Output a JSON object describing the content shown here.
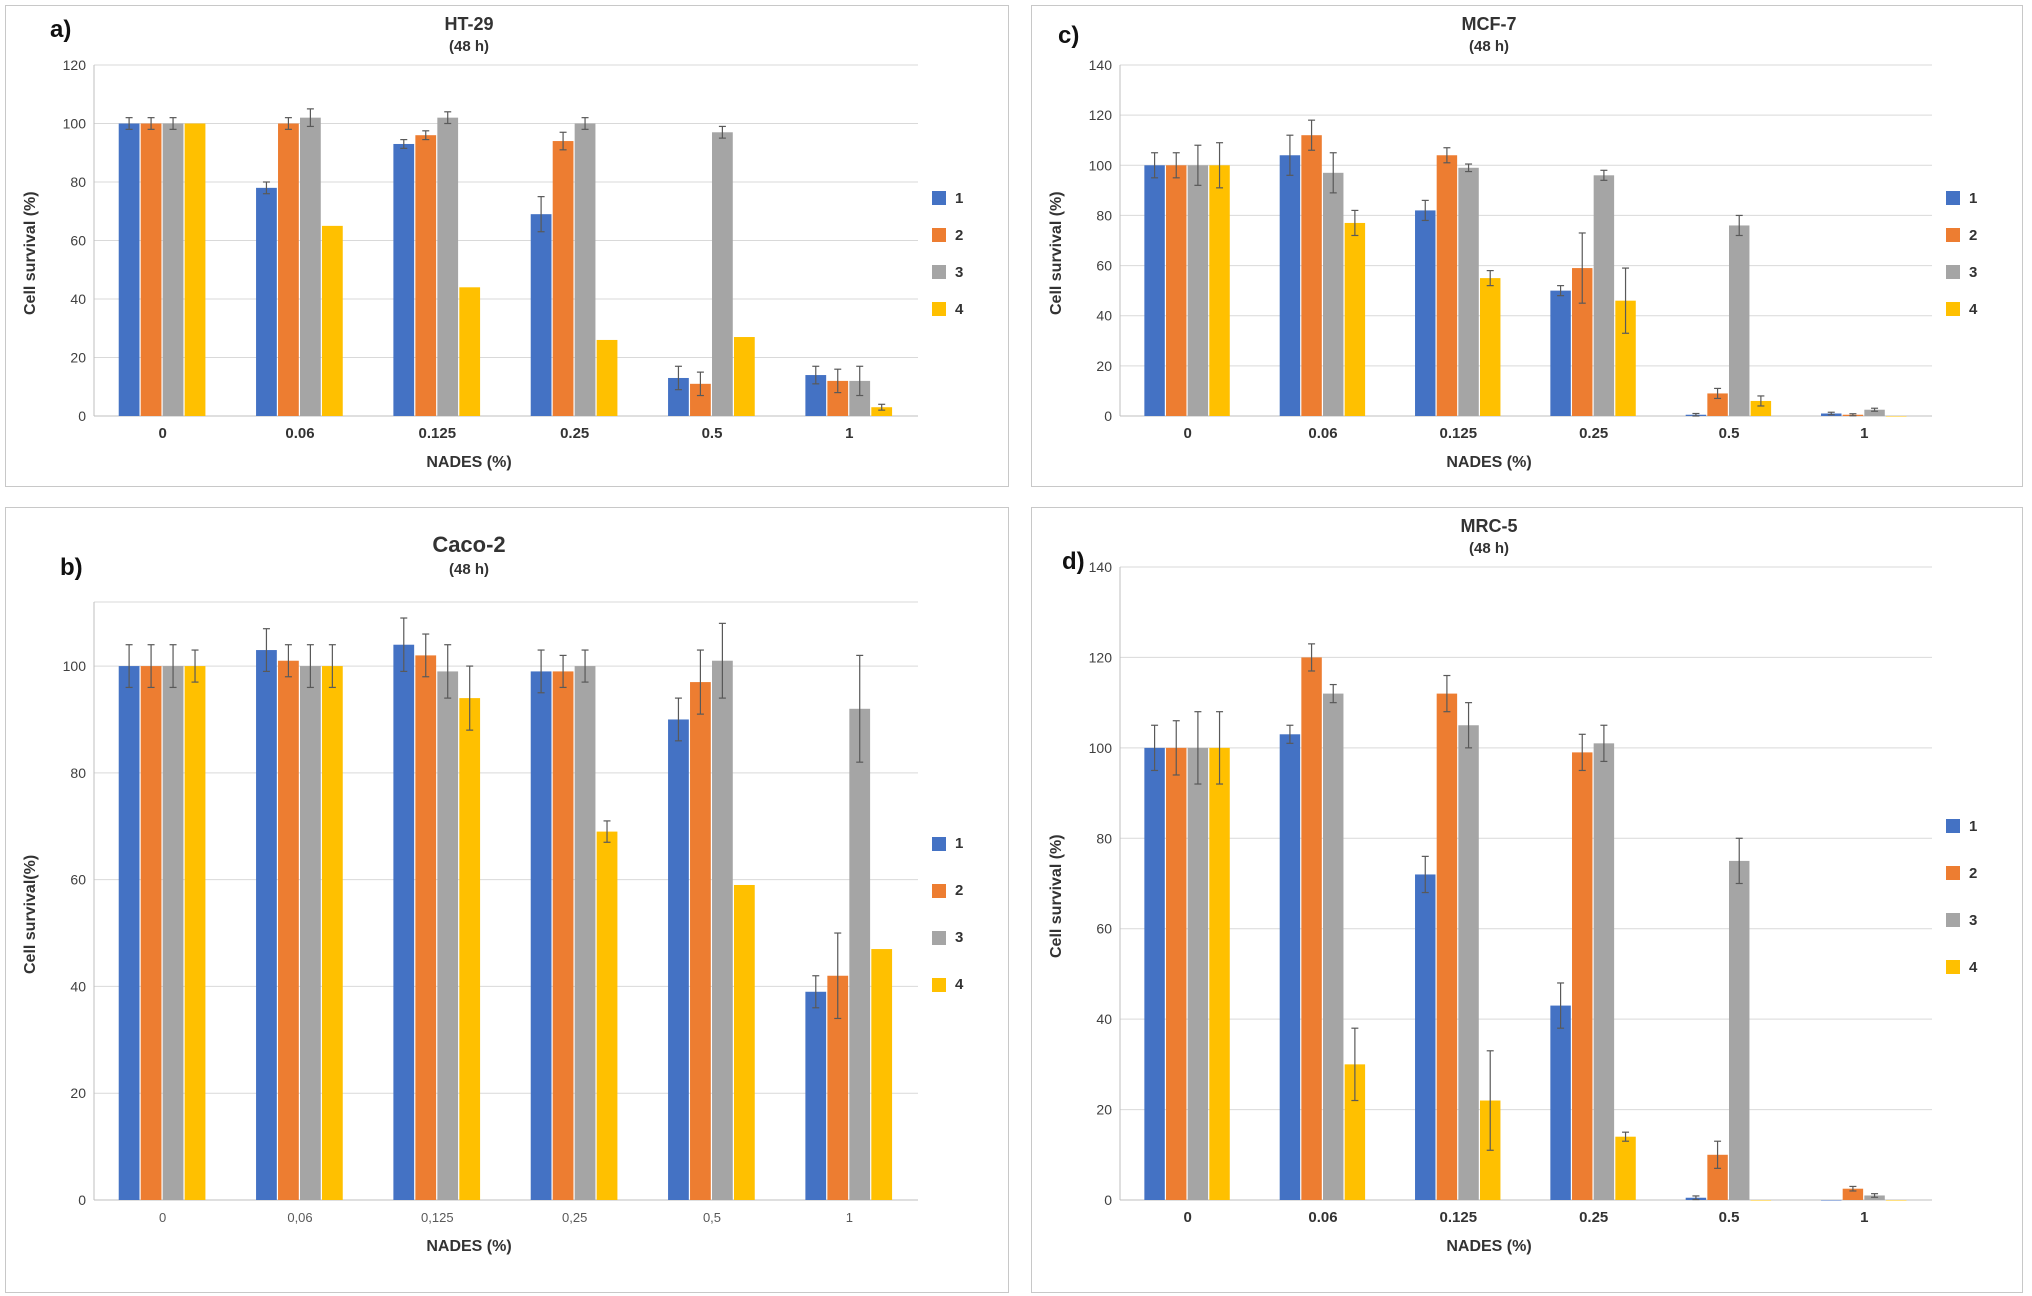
{
  "chart_data": [
    {
      "type": "bar",
      "panel_label": "a)",
      "title": "HT-29",
      "subtitle": "(48 h)",
      "xlabel": "NADES (%)",
      "ylabel": "Cell survival (%)",
      "categories": [
        "0",
        "0.06",
        "0.125",
        "0.25",
        "0.5",
        "1"
      ],
      "ylim": [
        0,
        120
      ],
      "ytick_step": 20,
      "grid": true,
      "legend_position": "right",
      "series": [
        {
          "name": "1",
          "color": "#4472C4",
          "values": [
            100,
            78,
            93,
            69,
            13,
            14
          ],
          "errors": [
            2,
            2,
            1.5,
            6,
            4,
            3
          ]
        },
        {
          "name": "2",
          "color": "#ED7D31",
          "values": [
            100,
            100,
            96,
            94,
            11,
            12
          ],
          "errors": [
            2,
            2,
            1.5,
            3,
            4,
            4
          ]
        },
        {
          "name": "3",
          "color": "#A5A5A5",
          "values": [
            100,
            102,
            102,
            100,
            97,
            12
          ],
          "errors": [
            2,
            3,
            2,
            2,
            2,
            5
          ]
        },
        {
          "name": "4",
          "color": "#FFC000",
          "values": [
            100,
            65,
            44,
            26,
            27,
            3
          ],
          "errors": [
            0,
            0,
            0,
            0,
            0,
            1
          ]
        }
      ]
    },
    {
      "type": "bar",
      "panel_label": "b)",
      "title": "Caco-2",
      "subtitle": "(48 h)",
      "xlabel": "NADES (%)",
      "ylabel": "Cell survival(%)",
      "categories": [
        "0",
        "0,06",
        "0,125",
        "0,25",
        "0,5",
        "1"
      ],
      "ylim": [
        0,
        112
      ],
      "ytick_step": 20,
      "ytick_max": 100,
      "grid": true,
      "legend_position": "right",
      "series": [
        {
          "name": "1",
          "color": "#4472C4",
          "values": [
            100,
            103,
            104,
            99,
            90,
            39
          ],
          "errors": [
            4,
            4,
            5,
            4,
            4,
            3
          ]
        },
        {
          "name": "2",
          "color": "#ED7D31",
          "values": [
            100,
            101,
            102,
            99,
            97,
            42
          ],
          "errors": [
            4,
            3,
            4,
            3,
            6,
            8
          ]
        },
        {
          "name": "3",
          "color": "#A5A5A5",
          "values": [
            100,
            100,
            99,
            100,
            101,
            92
          ],
          "errors": [
            4,
            4,
            5,
            3,
            7,
            10
          ]
        },
        {
          "name": "4",
          "color": "#FFC000",
          "values": [
            100,
            100,
            94,
            69,
            59,
            47
          ],
          "errors": [
            3,
            4,
            6,
            2,
            0,
            0
          ]
        }
      ]
    },
    {
      "type": "bar",
      "panel_label": "c)",
      "title": "MCF-7",
      "subtitle": "(48 h)",
      "xlabel": "NADES (%)",
      "ylabel": "Cell survival (%)",
      "categories": [
        "0",
        "0.06",
        "0.125",
        "0.25",
        "0.5",
        "1"
      ],
      "ylim": [
        0,
        140
      ],
      "ytick_step": 20,
      "grid": true,
      "legend_position": "right",
      "series": [
        {
          "name": "1",
          "color": "#4472C4",
          "values": [
            100,
            104,
            82,
            50,
            0.5,
            1
          ],
          "errors": [
            5,
            8,
            4,
            2,
            0.5,
            0.5
          ]
        },
        {
          "name": "2",
          "color": "#ED7D31",
          "values": [
            100,
            112,
            104,
            59,
            9,
            0.5
          ],
          "errors": [
            5,
            6,
            3,
            14,
            2,
            0.4
          ]
        },
        {
          "name": "3",
          "color": "#A5A5A5",
          "values": [
            100,
            97,
            99,
            96,
            76,
            2.5
          ],
          "errors": [
            8,
            8,
            1.5,
            2,
            4,
            0.6
          ]
        },
        {
          "name": "4",
          "color": "#FFC000",
          "values": [
            100,
            77,
            55,
            46,
            6,
            0
          ],
          "errors": [
            9,
            5,
            3,
            13,
            2,
            0
          ]
        }
      ]
    },
    {
      "type": "bar",
      "panel_label": "d)",
      "title": "MRC-5",
      "subtitle": "(48 h)",
      "xlabel": "NADES (%)",
      "ylabel": "Cell survival (%)",
      "categories": [
        "0",
        "0.06",
        "0.125",
        "0.25",
        "0.5",
        "1"
      ],
      "ylim": [
        0,
        140
      ],
      "ytick_step": 20,
      "grid": true,
      "legend_position": "right",
      "series": [
        {
          "name": "1",
          "color": "#4472C4",
          "values": [
            100,
            103,
            72,
            43,
            0.5,
            0
          ],
          "errors": [
            5,
            2,
            4,
            5,
            0.4,
            0
          ]
        },
        {
          "name": "2",
          "color": "#ED7D31",
          "values": [
            100,
            120,
            112,
            99,
            10,
            2.5
          ],
          "errors": [
            6,
            3,
            4,
            4,
            3,
            0.5
          ]
        },
        {
          "name": "3",
          "color": "#A5A5A5",
          "values": [
            100,
            112,
            105,
            101,
            75,
            1
          ],
          "errors": [
            8,
            2,
            5,
            4,
            5,
            0.4
          ]
        },
        {
          "name": "4",
          "color": "#FFC000",
          "values": [
            100,
            30,
            22,
            14,
            0,
            0
          ],
          "errors": [
            8,
            8,
            11,
            1,
            0,
            0
          ]
        }
      ]
    }
  ]
}
